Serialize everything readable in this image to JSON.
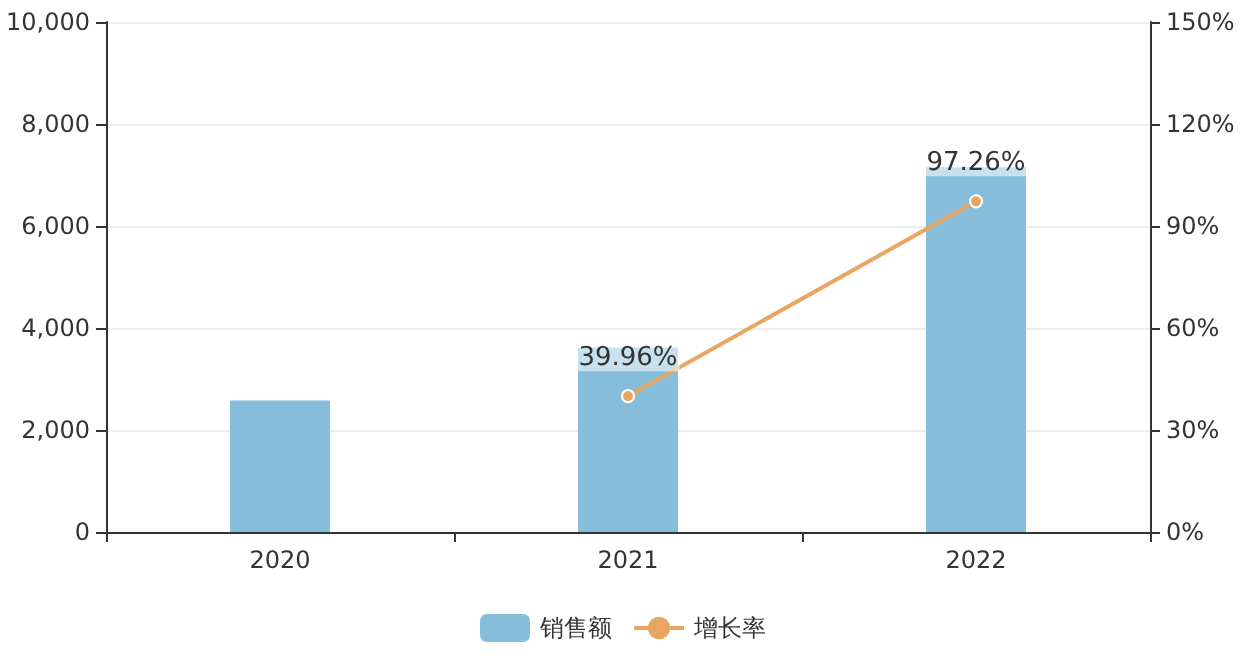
{
  "chart_data": {
    "type": "bar",
    "categories": [
      "2020",
      "2021",
      "2022"
    ],
    "series": [
      {
        "name": "销售额",
        "color": "#85bdda",
        "values": [
          2580,
          3620,
          7150
        ]
      },
      {
        "name": "增长率",
        "type": "line",
        "axis": "y2",
        "color": "#e9a663",
        "values": [
          null,
          39.96,
          97.26
        ],
        "value_labels": [
          null,
          "39.96%",
          "97.26%"
        ]
      }
    ],
    "ylim": [
      0,
      10000
    ],
    "yticks": [
      0,
      {
        "value": 2000,
        "label": "2,000"
      },
      {
        "value": 4000,
        "label": "4,000"
      },
      {
        "value": 6000,
        "label": "6,000"
      },
      {
        "value": 8000,
        "label": "8,000"
      },
      {
        "value": 10000,
        "label": "10,000"
      }
    ],
    "y2lim": [
      0,
      150
    ],
    "y2ticks": [
      {
        "value": 0,
        "label": "0%"
      },
      {
        "value": 30,
        "label": "30%"
      },
      {
        "value": 60,
        "label": "60%"
      },
      {
        "value": 90,
        "label": "90%"
      },
      {
        "value": 120,
        "label": "120%"
      },
      {
        "value": 150,
        "label": "150%"
      }
    ],
    "grid": "y",
    "legend": "bottom",
    "marker": "circle"
  }
}
